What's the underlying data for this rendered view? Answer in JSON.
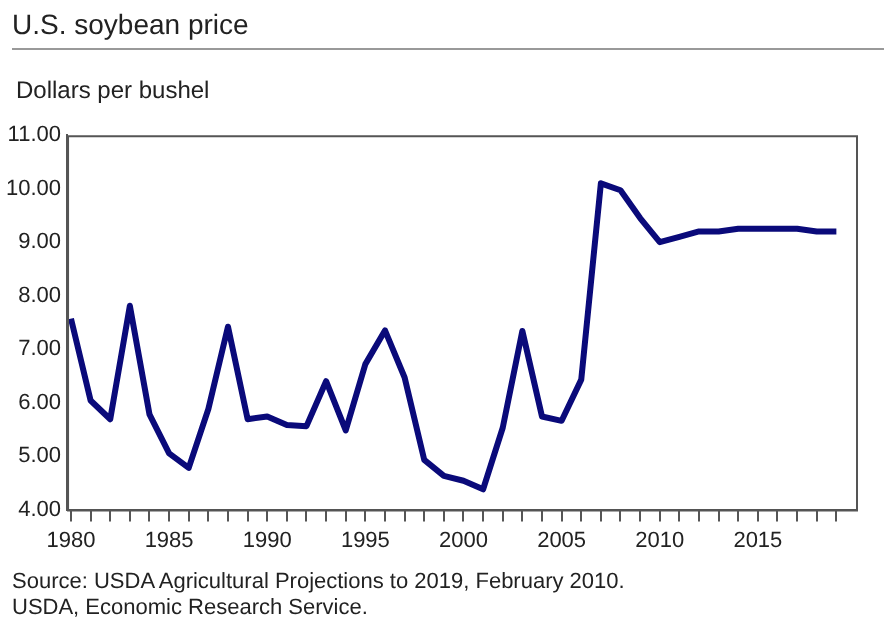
{
  "chart_data": {
    "type": "line",
    "title": "U.S. soybean price",
    "ylabel": "Dollars per bushel",
    "annotations": [
      "Source: USDA Agricultural Projections to 2019, February 2010.",
      "USDA, Economic Research Service."
    ],
    "x": [
      1980,
      1981,
      1982,
      1983,
      1984,
      1985,
      1986,
      1987,
      1988,
      1989,
      1990,
      1991,
      1992,
      1993,
      1994,
      1995,
      1996,
      1997,
      1998,
      1999,
      2000,
      2001,
      2002,
      2003,
      2004,
      2005,
      2006,
      2007,
      2008,
      2009,
      2010,
      2011,
      2012,
      2013,
      2014,
      2015,
      2016,
      2017,
      2018,
      2019
    ],
    "series": [
      {
        "color": "#0a0a7a",
        "values": [
          7.57,
          6.04,
          5.69,
          7.81,
          5.78,
          5.05,
          4.78,
          5.88,
          7.42,
          5.69,
          5.74,
          5.58,
          5.56,
          6.4,
          5.48,
          6.72,
          7.35,
          6.47,
          4.93,
          4.63,
          4.54,
          4.38,
          5.53,
          7.34,
          5.74,
          5.66,
          6.43,
          10.1,
          9.97,
          9.45,
          9.0,
          9.1,
          9.2,
          9.2,
          9.25,
          9.25,
          9.25,
          9.25,
          9.2,
          9.2
        ]
      }
    ],
    "xlim": [
      1979.8,
      2020
    ],
    "xticks": [
      1980,
      {
        "value": 1981,
        "label": null
      },
      {
        "value": 1982,
        "label": null
      },
      {
        "value": 1983,
        "label": null
      },
      {
        "value": 1984,
        "label": null
      },
      1985,
      {
        "value": 1986,
        "label": null
      },
      {
        "value": 1987,
        "label": null
      },
      {
        "value": 1988,
        "label": null
      },
      {
        "value": 1989,
        "label": null
      },
      1990,
      {
        "value": 1991,
        "label": null
      },
      {
        "value": 1992,
        "label": null
      },
      {
        "value": 1993,
        "label": null
      },
      {
        "value": 1994,
        "label": null
      },
      1995,
      {
        "value": 1996,
        "label": null
      },
      {
        "value": 1997,
        "label": null
      },
      {
        "value": 1998,
        "label": null
      },
      {
        "value": 1999,
        "label": null
      },
      2000,
      {
        "value": 2001,
        "label": null
      },
      {
        "value": 2002,
        "label": null
      },
      {
        "value": 2003,
        "label": null
      },
      {
        "value": 2004,
        "label": null
      },
      2005,
      {
        "value": 2006,
        "label": null
      },
      {
        "value": 2007,
        "label": null
      },
      {
        "value": 2008,
        "label": null
      },
      {
        "value": 2009,
        "label": null
      },
      2010,
      {
        "value": 2011,
        "label": null
      },
      {
        "value": 2012,
        "label": null
      },
      {
        "value": 2013,
        "label": null
      },
      {
        "value": 2014,
        "label": null
      },
      2015,
      {
        "value": 2016,
        "label": null
      },
      {
        "value": 2017,
        "label": null
      },
      {
        "value": 2018,
        "label": null
      },
      {
        "value": 2019,
        "label": null
      }
    ],
    "ylim": [
      4,
      11
    ],
    "yticks": [
      {
        "value": 4,
        "label": "4.00"
      },
      {
        "value": 5,
        "label": "5.00"
      },
      {
        "value": 6,
        "label": "6.00"
      },
      {
        "value": 7,
        "label": "7.00"
      },
      {
        "value": 8,
        "label": "8.00"
      },
      {
        "value": 9,
        "label": "9.00"
      },
      {
        "value": 10,
        "label": "10.00"
      },
      {
        "value": 11,
        "label": "11.00"
      }
    ],
    "grid": false,
    "legend": false,
    "marker": "none",
    "line_style": "solid"
  }
}
